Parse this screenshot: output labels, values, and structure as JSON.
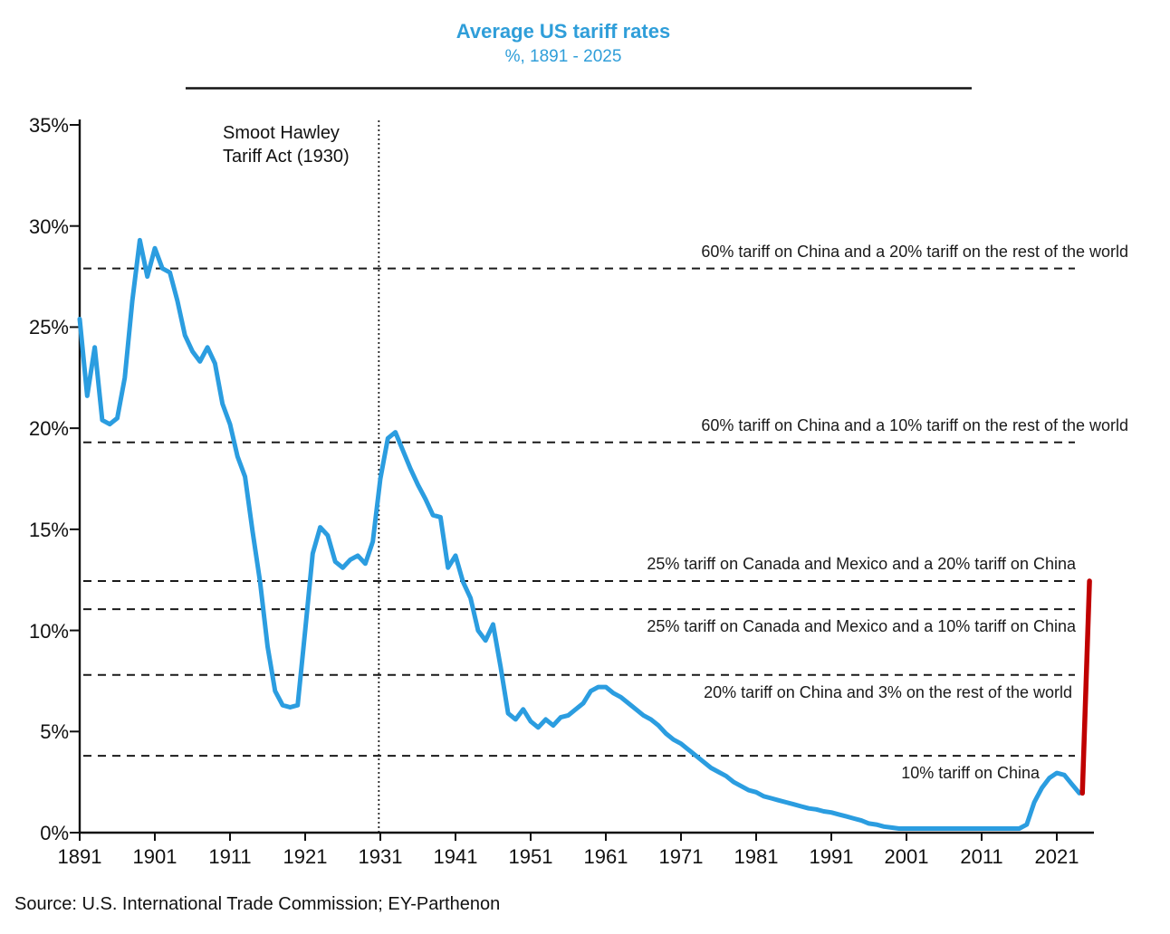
{
  "header": {
    "title": "Average US tariff rates",
    "subtitle": "%, 1891 - 2025"
  },
  "source": "Source: U.S. International Trade Commission; EY-Parthenon",
  "colors": {
    "title_blue": "#2f9ed9",
    "line_blue": "#2b9de0",
    "scenario_red": "#c00000",
    "dashed_black": "#1a1a1a",
    "axis_black": "#111111"
  },
  "chart_data": {
    "type": "line",
    "title": "Average US tariff rates",
    "subtitle": "%, 1891 - 2025",
    "ylabel": "%",
    "ylim": [
      0,
      35
    ],
    "xlim": [
      1891,
      2026
    ],
    "grid": false,
    "legend": "none",
    "y_ticks": [
      0,
      5,
      10,
      15,
      20,
      25,
      30,
      35
    ],
    "y_tick_labels": [
      "0%",
      "5%",
      "10%",
      "15%",
      "20%",
      "25%",
      "30%",
      "35%"
    ],
    "x_ticks": [
      1891,
      1901,
      1911,
      1921,
      1931,
      1941,
      1951,
      1961,
      1971,
      1981,
      1991,
      2001,
      2011,
      2021
    ],
    "series": [
      {
        "id": "historical-tariff-rate",
        "color": "#2b9de0",
        "x_start": 1891,
        "x_step": 1,
        "y": [
          25.4,
          21.6,
          24.0,
          20.4,
          20.2,
          20.5,
          22.5,
          26.3,
          29.3,
          27.5,
          28.9,
          27.9,
          27.7,
          26.3,
          24.6,
          23.8,
          23.3,
          24.0,
          23.2,
          21.2,
          20.2,
          18.6,
          17.6,
          14.9,
          12.4,
          9.2,
          7.0,
          6.3,
          6.2,
          6.3,
          10.0,
          13.8,
          15.1,
          14.7,
          13.4,
          13.1,
          13.5,
          13.7,
          13.3,
          14.4,
          17.5,
          19.5,
          19.8,
          18.9,
          18.0,
          17.2,
          16.5,
          15.7,
          15.6,
          13.1,
          13.7,
          12.4,
          11.6,
          10.0,
          9.5,
          10.3,
          8.2,
          5.9,
          5.6,
          6.1,
          5.5,
          5.2,
          5.6,
          5.3,
          5.7,
          5.8,
          6.1,
          6.4,
          7.0,
          7.2,
          7.2,
          6.9,
          6.7,
          6.4,
          6.1,
          5.8,
          5.6,
          5.3,
          4.9,
          4.6,
          4.4,
          4.1,
          3.8,
          3.5,
          3.2,
          3.0,
          2.8,
          2.5,
          2.3,
          2.1,
          2.0,
          1.8,
          1.7,
          1.6,
          1.5,
          1.4,
          1.3,
          1.2,
          1.15,
          1.05,
          1.0,
          0.9,
          0.8,
          0.7,
          0.6,
          0.45,
          0.4,
          0.3,
          0.25,
          0.2,
          0.2,
          0.2,
          0.2,
          0.2,
          0.2,
          0.2,
          0.2,
          0.2,
          0.2,
          0.2,
          0.2,
          0.2,
          0.2,
          0.2,
          0.2,
          0.2,
          0.4,
          1.5,
          2.2,
          2.7,
          2.95,
          2.85,
          2.4,
          1.95
        ]
      },
      {
        "id": "2025-scenario",
        "color": "#c00000",
        "x": [
          2024.4,
          2025.35
        ],
        "y": [
          1.95,
          12.44
        ]
      }
    ],
    "reference_lines": [
      {
        "value": 27.9,
        "label": "60% tariff on China and a 20% tariff on the rest of the world"
      },
      {
        "value": 19.3,
        "label": "60% tariff on China and a 10% tariff on the rest of the world"
      },
      {
        "value": 12.44,
        "label": "25% tariff on Canada and Mexico and a 20% tariff on China"
      },
      {
        "value": 11.05,
        "label": "25% tariff on Canada and Mexico and a 10% tariff on China"
      },
      {
        "value": 7.8,
        "label": "20% tariff on China and 3% on the rest of the world"
      },
      {
        "value": 3.8,
        "label": "10% tariff on China"
      }
    ],
    "event_marker": {
      "year": 1930.8,
      "label_line1": "Smoot Hawley",
      "label_line2": "Tariff Act (1930)"
    }
  }
}
